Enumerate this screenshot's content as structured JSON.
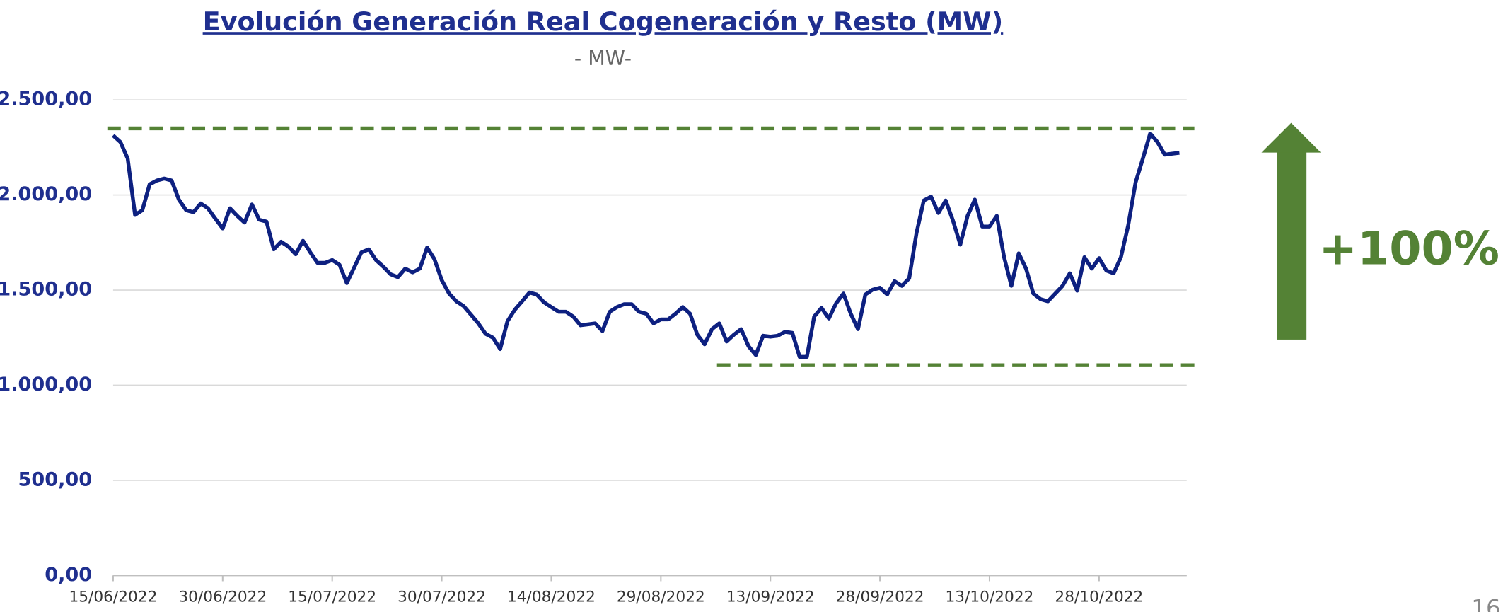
{
  "chart_data": {
    "type": "line",
    "title": "Evolución Generación Real Cogeneración y Resto (MW)",
    "subtitle": "- MW-",
    "categories": [
      "15/06/2022",
      null,
      null,
      null,
      null,
      null,
      null,
      null,
      null,
      null,
      null,
      null,
      null,
      null,
      null,
      "30/06/2022",
      null,
      null,
      null,
      null,
      null,
      null,
      null,
      null,
      null,
      null,
      null,
      null,
      null,
      null,
      "15/07/2022",
      null,
      null,
      null,
      null,
      null,
      null,
      null,
      null,
      null,
      null,
      null,
      null,
      null,
      null,
      "30/07/2022",
      null,
      null,
      null,
      null,
      null,
      null,
      null,
      null,
      null,
      null,
      null,
      null,
      null,
      null,
      "14/08/2022",
      null,
      null,
      null,
      null,
      null,
      null,
      null,
      null,
      null,
      null,
      null,
      null,
      null,
      null,
      "29/08/2022",
      null,
      null,
      null,
      null,
      null,
      null,
      null,
      null,
      null,
      null,
      null,
      null,
      null,
      null,
      "13/09/2022",
      null,
      null,
      null,
      null,
      null,
      null,
      null,
      null,
      null,
      null,
      null,
      null,
      null,
      null,
      "28/09/2022",
      null,
      null,
      null,
      null,
      null,
      null,
      null,
      null,
      null,
      null,
      null,
      null,
      null,
      null,
      "13/10/2022",
      null,
      null,
      null,
      null,
      null,
      null,
      null,
      null,
      null,
      null,
      null,
      null,
      null,
      null,
      "28/10/2022",
      null,
      null,
      null,
      null,
      null,
      null,
      null,
      null,
      null,
      null,
      null
    ],
    "series": [
      {
        "color": "#0d2080",
        "values": [
          2313,
          2278,
          2192,
          1895,
          1920,
          2056,
          2076,
          2086,
          2076,
          1976,
          1920,
          1910,
          1955,
          1930,
          1875,
          1824,
          1930,
          1890,
          1855,
          1950,
          1870,
          1860,
          1714,
          1754,
          1729,
          1688,
          1759,
          1698,
          1643,
          1643,
          1658,
          1633,
          1537,
          1618,
          1698,
          1714,
          1658,
          1623,
          1583,
          1568,
          1613,
          1593,
          1613,
          1724,
          1663,
          1552,
          1482,
          1441,
          1416,
          1371,
          1325,
          1270,
          1250,
          1190,
          1336,
          1396,
          1441,
          1487,
          1477,
          1436,
          1411,
          1386,
          1386,
          1361,
          1315,
          1320,
          1325,
          1285,
          1386,
          1411,
          1426,
          1426,
          1386,
          1376,
          1325,
          1346,
          1346,
          1376,
          1411,
          1376,
          1265,
          1215,
          1295,
          1325,
          1230,
          1265,
          1295,
          1205,
          1159,
          1260,
          1255,
          1260,
          1280,
          1275,
          1149,
          1149,
          1361,
          1406,
          1351,
          1431,
          1482,
          1376,
          1295,
          1477,
          1502,
          1512,
          1477,
          1547,
          1522,
          1562,
          1799,
          1971,
          1991,
          1905,
          1971,
          1865,
          1739,
          1890,
          1976,
          1834,
          1834,
          1890,
          1673,
          1522,
          1693,
          1613,
          1482,
          1452,
          1441,
          1482,
          1522,
          1588,
          1497,
          1673,
          1613,
          1668,
          1603,
          1588,
          1673,
          1840,
          2066,
          2192,
          2323,
          2278,
          2212,
          2217,
          2222
        ]
      }
    ],
    "ylim": [
      0,
      2500
    ],
    "yticks": [
      {
        "value": 0,
        "label": "0,00"
      },
      {
        "value": 500,
        "label": "500,00"
      },
      {
        "value": 1000,
        "label": "1.000,00"
      },
      {
        "value": 1500,
        "label": "1.500,00"
      },
      {
        "value": 2000,
        "label": "2.000,00"
      },
      {
        "value": 2500,
        "label": "2.500,00"
      }
    ],
    "grid": true,
    "reference_lines": [
      {
        "value": 2350,
        "color": "#548235"
      },
      {
        "value": 1105,
        "color": "#548235"
      }
    ],
    "annotation": "+100%",
    "annotation_color": "#548235"
  },
  "page_number": "16"
}
